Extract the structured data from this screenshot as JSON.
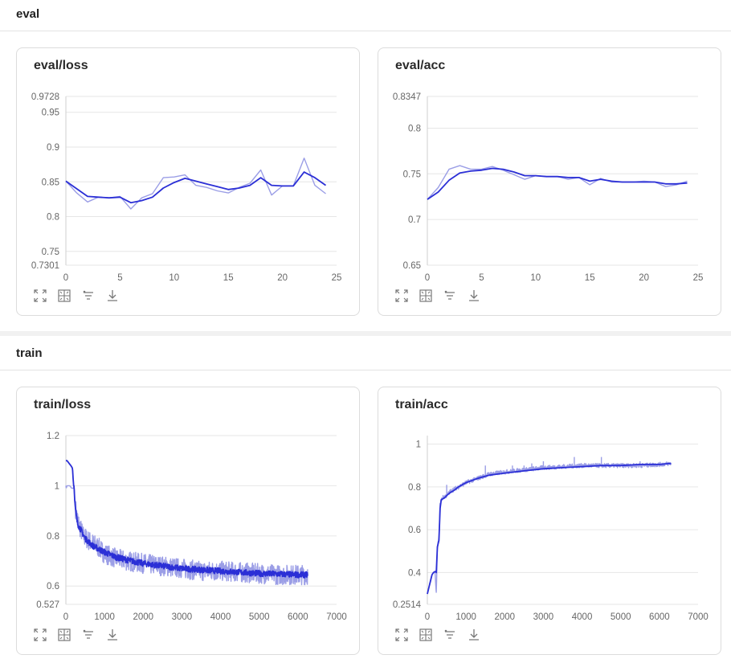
{
  "sections": [
    {
      "title": "eval"
    },
    {
      "title": "train"
    }
  ],
  "toolbar_icons": [
    "expand-icon",
    "fit-icon",
    "filter-icon",
    "download-icon"
  ],
  "colors": {
    "raw_series": "#9b9ee6",
    "smoothed_series": "#2b2fd6",
    "grid": "#e6e6e6"
  },
  "chart_data": [
    {
      "id": "eval_loss",
      "title": "eval/loss",
      "type": "line",
      "xlim": [
        0,
        25
      ],
      "ylim": [
        0.7301,
        0.9728
      ],
      "x_ticks": [
        0,
        5,
        10,
        15,
        20,
        25
      ],
      "y_ticks": [
        0.7301,
        0.75,
        0.8,
        0.85,
        0.9,
        0.95,
        0.9728
      ],
      "y_tick_labels": [
        "0.7301",
        "0.75",
        "0.8",
        "0.85",
        "0.9",
        "0.95",
        "0.9728"
      ],
      "series": [
        {
          "style": "raw",
          "x": [
            0,
            1,
            2,
            3,
            4,
            5,
            6,
            7,
            8,
            9,
            10,
            11,
            12,
            13,
            14,
            15,
            16,
            17,
            18,
            19,
            20,
            21,
            22,
            23,
            24
          ],
          "values": [
            0.851,
            0.834,
            0.821,
            0.828,
            0.827,
            0.829,
            0.811,
            0.827,
            0.833,
            0.856,
            0.857,
            0.86,
            0.845,
            0.842,
            0.837,
            0.834,
            0.842,
            0.848,
            0.867,
            0.831,
            0.844,
            0.844,
            0.884,
            0.845,
            0.833
          ]
        },
        {
          "style": "smoothed",
          "x": [
            0,
            1,
            2,
            3,
            4,
            5,
            6,
            7,
            8,
            9,
            10,
            11,
            12,
            13,
            14,
            15,
            16,
            17,
            18,
            19,
            20,
            21,
            22,
            23,
            24
          ],
          "values": [
            0.851,
            0.84,
            0.829,
            0.828,
            0.827,
            0.828,
            0.82,
            0.823,
            0.828,
            0.841,
            0.849,
            0.855,
            0.851,
            0.847,
            0.843,
            0.839,
            0.841,
            0.845,
            0.856,
            0.845,
            0.844,
            0.844,
            0.864,
            0.856,
            0.845
          ]
        }
      ]
    },
    {
      "id": "eval_acc",
      "title": "eval/acc",
      "type": "line",
      "xlim": [
        0,
        25
      ],
      "ylim": [
        0.65,
        0.8347
      ],
      "x_ticks": [
        0,
        5,
        10,
        15,
        20,
        25
      ],
      "y_ticks": [
        0.65,
        0.7,
        0.75,
        0.8,
        0.8347
      ],
      "y_tick_labels": [
        "0.65",
        "0.7",
        "0.75",
        "0.8",
        "0.8347"
      ],
      "series": [
        {
          "style": "raw",
          "x": [
            0,
            1,
            2,
            3,
            4,
            5,
            6,
            7,
            8,
            9,
            10,
            11,
            12,
            13,
            14,
            15,
            16,
            17,
            18,
            19,
            20,
            21,
            22,
            23,
            24
          ],
          "values": [
            0.722,
            0.735,
            0.755,
            0.759,
            0.755,
            0.755,
            0.758,
            0.754,
            0.749,
            0.744,
            0.748,
            0.747,
            0.747,
            0.744,
            0.746,
            0.738,
            0.745,
            0.741,
            0.741,
            0.741,
            0.742,
            0.741,
            0.736,
            0.738,
            0.742
          ]
        },
        {
          "style": "smoothed",
          "x": [
            0,
            1,
            2,
            3,
            4,
            5,
            6,
            7,
            8,
            9,
            10,
            11,
            12,
            13,
            14,
            15,
            16,
            17,
            18,
            19,
            20,
            21,
            22,
            23,
            24
          ],
          "values": [
            0.722,
            0.73,
            0.743,
            0.751,
            0.753,
            0.754,
            0.756,
            0.755,
            0.752,
            0.748,
            0.748,
            0.747,
            0.747,
            0.746,
            0.746,
            0.742,
            0.744,
            0.742,
            0.741,
            0.741,
            0.741,
            0.741,
            0.739,
            0.739,
            0.74
          ]
        }
      ]
    },
    {
      "id": "train_loss",
      "title": "train/loss",
      "type": "line",
      "xlim": [
        0,
        7000
      ],
      "ylim": [
        0.527,
        1.2
      ],
      "x_ticks": [
        0,
        1000,
        2000,
        3000,
        4000,
        5000,
        6000,
        7000
      ],
      "y_ticks": [
        0.527,
        0.6,
        0.8,
        1,
        1.2
      ],
      "y_tick_labels": [
        "0.527",
        "0.6",
        "0.8",
        "1",
        "1.2"
      ],
      "series": [
        {
          "style": "raw",
          "x": [
            0,
            10,
            30,
            60,
            100,
            150,
            200,
            210,
            220,
            240,
            280,
            350,
            450,
            600,
            800,
            1000,
            1300,
            1600,
            2000,
            2500,
            3000,
            3500,
            4000,
            4500,
            5000,
            5500,
            6000,
            6250
          ],
          "values": [
            1.0,
            0.99,
            1.0,
            1.0,
            1.0,
            0.99,
            0.99,
            1.0,
            0.97,
            0.92,
            0.88,
            0.84,
            0.8,
            0.78,
            0.76,
            0.73,
            0.71,
            0.7,
            0.69,
            0.68,
            0.67,
            0.66,
            0.66,
            0.655,
            0.65,
            0.645,
            0.645,
            0.645
          ],
          "noise": 0.04
        },
        {
          "style": "smoothed",
          "x": [
            0,
            30,
            80,
            130,
            170,
            200,
            205,
            210,
            230,
            260,
            300,
            400,
            500,
            700,
            1000,
            1300,
            1700,
            2000,
            2500,
            3000,
            3500,
            4000,
            4500,
            5000,
            5500,
            6000,
            6250
          ],
          "values": [
            1.1,
            1.1,
            1.09,
            1.08,
            1.07,
            1.0,
            1.0,
            1.0,
            0.94,
            0.89,
            0.85,
            0.82,
            0.79,
            0.76,
            0.735,
            0.715,
            0.7,
            0.69,
            0.68,
            0.67,
            0.665,
            0.66,
            0.655,
            0.65,
            0.648,
            0.645,
            0.645
          ],
          "noise": 0.012
        }
      ]
    },
    {
      "id": "train_acc",
      "title": "train/acc",
      "type": "line",
      "xlim": [
        0,
        7000
      ],
      "ylim": [
        0.2514,
        1.04
      ],
      "x_ticks": [
        0,
        1000,
        2000,
        3000,
        4000,
        5000,
        6000,
        7000
      ],
      "y_ticks": [
        0.2514,
        0.4,
        0.6,
        0.8,
        1
      ],
      "y_tick_labels": [
        "0.2514",
        "0.4",
        "0.6",
        "0.8",
        "1"
      ],
      "series": [
        {
          "style": "raw",
          "x": [
            0,
            50,
            100,
            150,
            200,
            230,
            260,
            300,
            330,
            360,
            400,
            500,
            600,
            800,
            1000,
            1300,
            1600,
            2000,
            2500,
            3000,
            3500,
            4000,
            4500,
            5000,
            5500,
            6000,
            6300
          ],
          "values": [
            0.3,
            0.34,
            0.38,
            0.4,
            0.4,
            0.3,
            0.52,
            0.56,
            0.72,
            0.74,
            0.75,
            0.76,
            0.78,
            0.8,
            0.82,
            0.84,
            0.86,
            0.87,
            0.88,
            0.89,
            0.895,
            0.9,
            0.9,
            0.9,
            0.9,
            0.905,
            0.91
          ],
          "noise": 0.01,
          "spikes": [
            [
              500,
              0.81
            ],
            [
              1500,
              0.9
            ],
            [
              2200,
              0.9
            ],
            [
              2500,
              0.9
            ],
            [
              2700,
              0.91
            ],
            [
              3000,
              0.92
            ],
            [
              3800,
              0.94
            ],
            [
              4500,
              0.94
            ],
            [
              5500,
              0.92
            ]
          ]
        },
        {
          "style": "smoothed",
          "x": [
            0,
            40,
            80,
            120,
            160,
            200,
            215,
            230,
            260,
            300,
            330,
            360,
            400,
            450,
            500,
            600,
            700,
            800,
            1000,
            1300,
            1600,
            2000,
            2500,
            3000,
            3500,
            4000,
            4500,
            5000,
            5500,
            6000,
            6300
          ],
          "values": [
            0.3,
            0.33,
            0.36,
            0.39,
            0.4,
            0.405,
            0.405,
            0.4,
            0.52,
            0.55,
            0.7,
            0.74,
            0.745,
            0.75,
            0.76,
            0.775,
            0.785,
            0.8,
            0.82,
            0.84,
            0.855,
            0.865,
            0.875,
            0.885,
            0.89,
            0.895,
            0.9,
            0.9,
            0.905,
            0.905,
            0.91
          ]
        }
      ]
    }
  ]
}
